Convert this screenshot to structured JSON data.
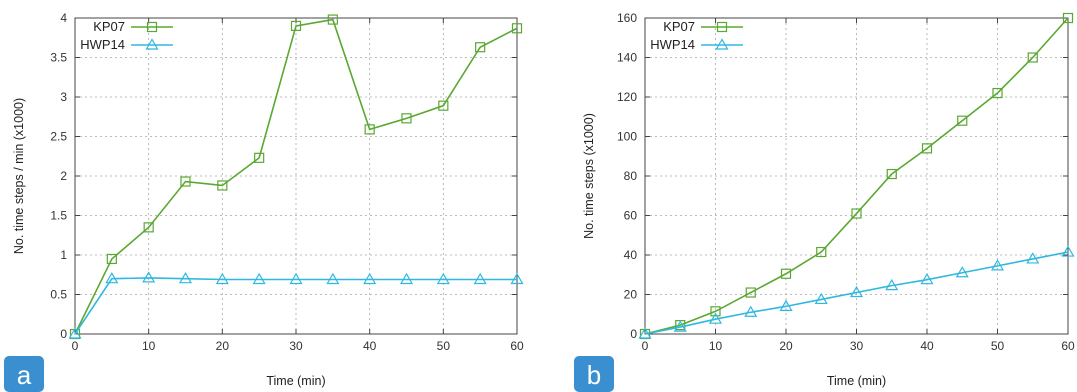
{
  "chart_data": [
    {
      "type": "line",
      "badge": "a",
      "title": "",
      "xlabel": "Time (min)",
      "ylabel": "No. time steps / min (x1000)",
      "xlim": [
        0,
        60
      ],
      "ylim": [
        0,
        4
      ],
      "xticks": [
        0,
        10,
        20,
        30,
        40,
        50,
        60
      ],
      "yticks": [
        0,
        0.5,
        1,
        1.5,
        2,
        2.5,
        3,
        3.5,
        4
      ],
      "ytick_labels": [
        "0",
        "0.5",
        "1",
        "1.5",
        "2",
        "2.5",
        "3",
        "3.5",
        "4"
      ],
      "grid": true,
      "legend_position": "top-left",
      "x": [
        0,
        5,
        10,
        15,
        20,
        25,
        30,
        35,
        40,
        45,
        50,
        55,
        60
      ],
      "series": [
        {
          "name": "KP07",
          "color": "#5aa832",
          "marker": "square",
          "values": [
            0,
            0.95,
            1.35,
            1.93,
            1.88,
            2.23,
            3.9,
            3.98,
            2.59,
            2.73,
            2.89,
            3.63,
            3.87
          ]
        },
        {
          "name": "HWP14",
          "color": "#30b8e0",
          "marker": "triangle",
          "values": [
            0,
            0.7,
            0.71,
            0.7,
            0.69,
            0.69,
            0.69,
            0.69,
            0.69,
            0.69,
            0.69,
            0.69,
            0.69
          ]
        }
      ]
    },
    {
      "type": "line",
      "badge": "b",
      "title": "",
      "xlabel": "Time (min)",
      "ylabel": "No. time steps (x1000)",
      "xlim": [
        0,
        60
      ],
      "ylim": [
        0,
        160
      ],
      "xticks": [
        0,
        10,
        20,
        30,
        40,
        50,
        60
      ],
      "yticks": [
        0,
        20,
        40,
        60,
        80,
        100,
        120,
        140,
        160
      ],
      "ytick_labels": [
        "0",
        "20",
        "40",
        "60",
        "80",
        "100",
        "120",
        "140",
        "160"
      ],
      "grid": true,
      "legend_position": "top-left",
      "x": [
        0,
        5,
        10,
        15,
        20,
        25,
        30,
        35,
        40,
        45,
        50,
        55,
        60
      ],
      "series": [
        {
          "name": "KP07",
          "color": "#5aa832",
          "marker": "square",
          "values": [
            0,
            4.5,
            11.5,
            21,
            30.5,
            41.5,
            61,
            81,
            94,
            108,
            122,
            140,
            160
          ]
        },
        {
          "name": "HWP14",
          "color": "#30b8e0",
          "marker": "triangle",
          "values": [
            0,
            3.5,
            7.5,
            11,
            14,
            17.5,
            21,
            24.5,
            27.5,
            31,
            34.5,
            38,
            41.5
          ]
        }
      ]
    }
  ],
  "badge_color": "#3a8fd0"
}
